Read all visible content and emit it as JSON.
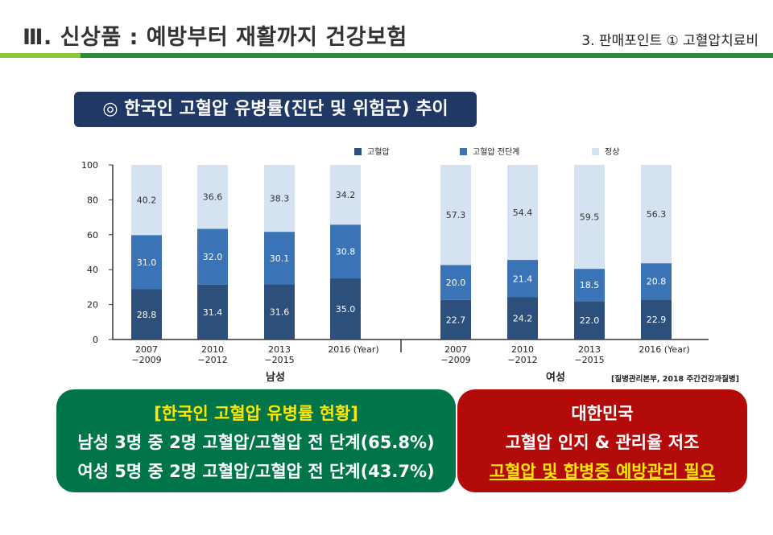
{
  "header": {
    "title": "Ⅲ. 신상품 : 예방부터 재활까지 건강보험",
    "subtitle": "3. 판매포인트 ① 고혈압치료비"
  },
  "banner": {
    "text": "◎ 한국인 고혈압 유병률(진단 및 위험군) 추이"
  },
  "chart_data": {
    "type": "bar",
    "stacked": true,
    "title": "한국인 고혈압 유병률(진단 및 위험군) 추이",
    "categories": [
      "2007\n−2009",
      "2010\n−2012",
      "2013\n−2015",
      "2016 (Year)"
    ],
    "ylim": [
      0,
      100
    ],
    "yticks": [
      0,
      20,
      40,
      60,
      80,
      100
    ],
    "legend": [
      {
        "name": "고혈압",
        "color": "#2d4f7c"
      },
      {
        "name": "고혈압 전단계",
        "color": "#3a73b6"
      },
      {
        "name": "정상",
        "color": "#d4e2f1"
      }
    ],
    "groups": [
      {
        "name": "남성",
        "series": [
          {
            "name": "고혈압",
            "values": [
              28.8,
              31.4,
              31.6,
              35.0
            ]
          },
          {
            "name": "고혈압 전단계",
            "values": [
              31.0,
              32.0,
              30.1,
              30.8
            ]
          },
          {
            "name": "정상",
            "values": [
              40.2,
              36.6,
              38.3,
              34.2
            ]
          }
        ]
      },
      {
        "name": "여성",
        "series": [
          {
            "name": "고혈압",
            "values": [
              22.7,
              24.2,
              22.0,
              22.9
            ]
          },
          {
            "name": "고혈압 전단계",
            "values": [
              20.0,
              21.4,
              18.5,
              20.8
            ]
          },
          {
            "name": "정상",
            "values": [
              57.3,
              54.4,
              59.5,
              56.3
            ]
          }
        ]
      }
    ],
    "source": "[질병관리본부, 2018 주간건강과질병]"
  },
  "summary_box": {
    "line1": "[한국인 고혈압 유병률 현황]",
    "line2": "남성 3명 중 2명 고혈압/고혈압 전 단계(65.8%)",
    "line3": "여성 5명 중 2명 고혈압/고혈압 전 단계(43.7%)"
  },
  "message_box": {
    "line1": "대한민국",
    "line2": "고혈압 인지 & 관리율 저조",
    "line3": "고혈압 및 합병증 예방관리 필요"
  }
}
